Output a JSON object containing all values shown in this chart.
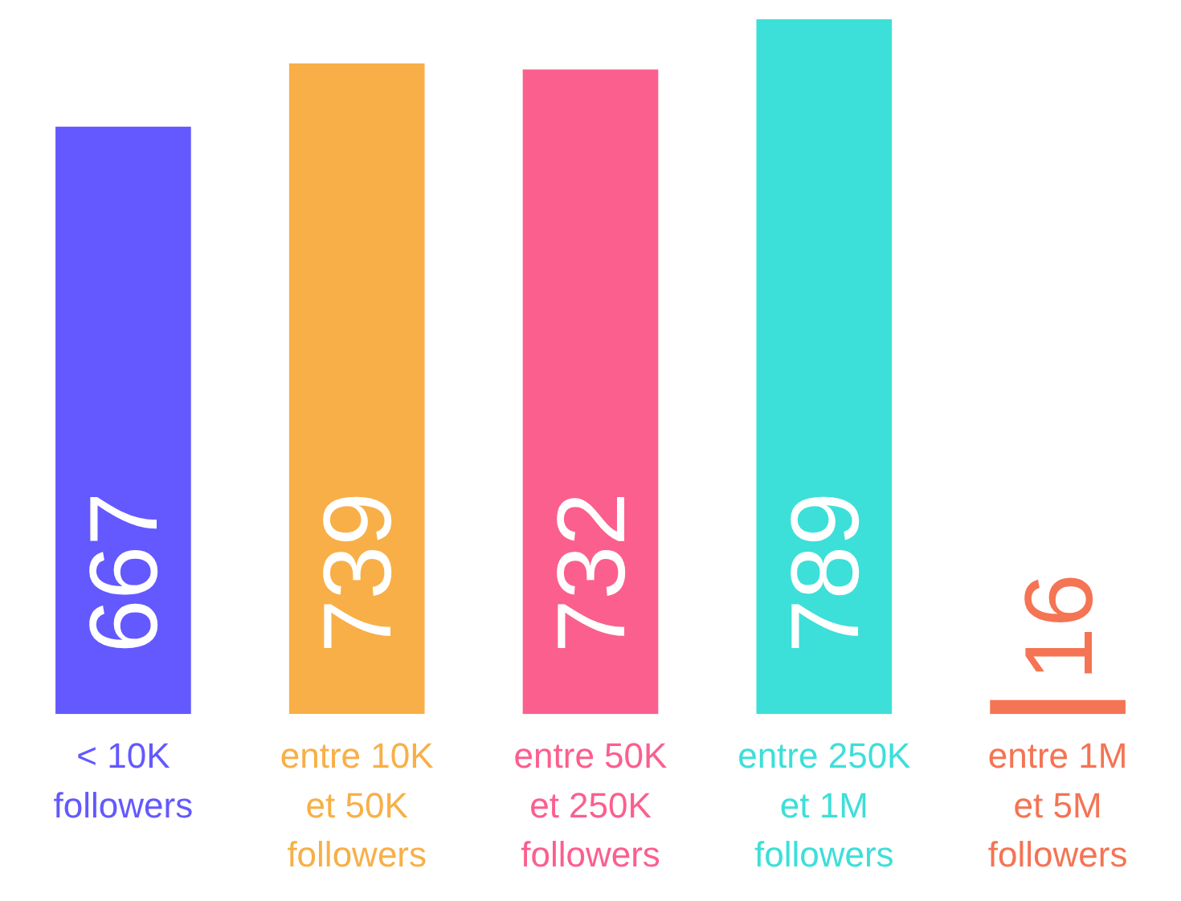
{
  "chart_data": {
    "type": "bar",
    "categories": [
      "< 10K\nfollowers",
      "entre 10K\net 50K\nfollowers",
      "entre 50K\net 250K\nfollowers",
      "entre 250K\net 1M\nfollowers",
      "entre 1M\net 5M\nfollowers"
    ],
    "values": [
      667,
      739,
      732,
      789,
      16
    ],
    "colors": [
      "#6359ff",
      "#f8af47",
      "#fb5f8e",
      "#3ddfd9",
      "#f47454"
    ],
    "data_labels": true,
    "grid": false,
    "legend": false
  }
}
